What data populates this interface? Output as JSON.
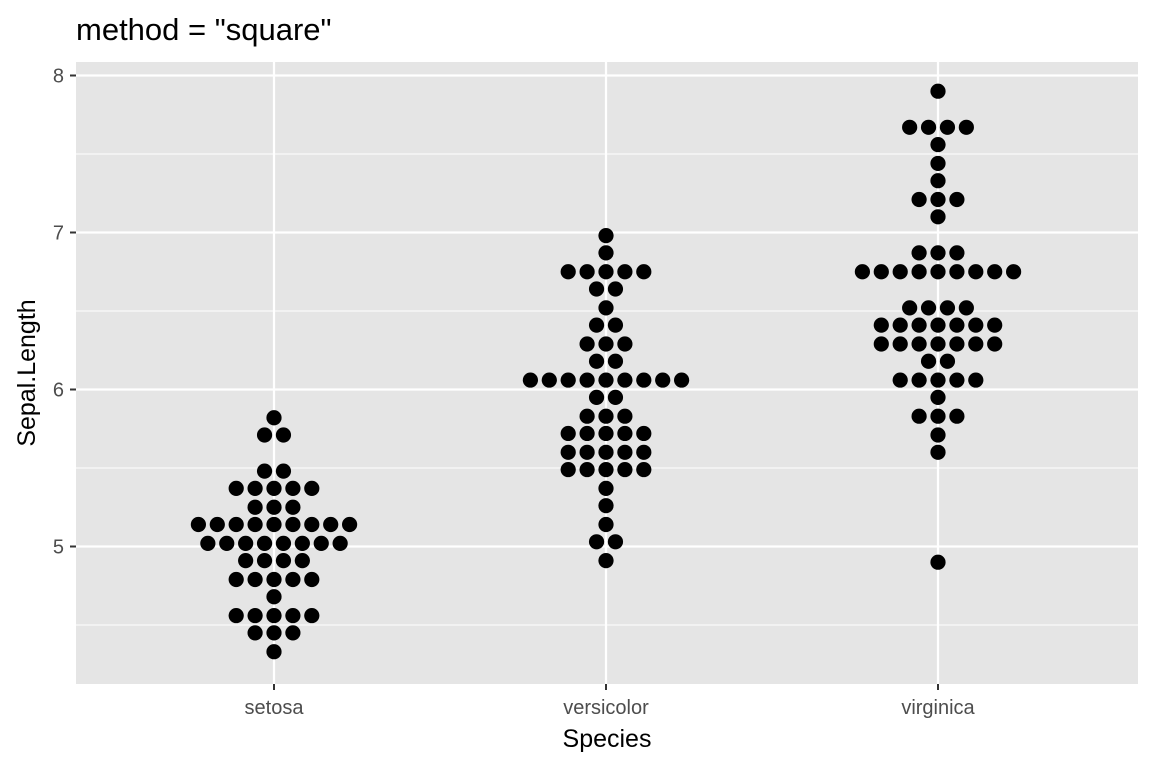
{
  "chart_data": {
    "type": "dotplot",
    "title": "method = \"square\"",
    "xlabel": "Species",
    "ylabel": "Sepal.Length",
    "categories": [
      "setosa",
      "versicolor",
      "virginica"
    ],
    "ylim": [
      4.12,
      8.0
    ],
    "yticks": [
      5,
      6,
      7,
      8
    ],
    "grid": true,
    "dot_color": "#000000",
    "panel_background": "#e5e5e5",
    "grid_color": "#ffffff",
    "bins": [
      {
        "category": "setosa",
        "rows": [
          {
            "y": 5.82,
            "count": 1
          },
          {
            "y": 5.71,
            "count": 2
          },
          {
            "y": 5.48,
            "count": 2
          },
          {
            "y": 5.37,
            "count": 5
          },
          {
            "y": 5.25,
            "count": 3
          },
          {
            "y": 5.14,
            "count": 9
          },
          {
            "y": 5.02,
            "count": 8
          },
          {
            "y": 4.91,
            "count": 4
          },
          {
            "y": 4.79,
            "count": 5
          },
          {
            "y": 4.68,
            "count": 1
          },
          {
            "y": 4.56,
            "count": 5
          },
          {
            "y": 4.45,
            "count": 3
          },
          {
            "y": 4.33,
            "count": 1
          }
        ]
      },
      {
        "category": "versicolor",
        "rows": [
          {
            "y": 6.98,
            "count": 1
          },
          {
            "y": 6.87,
            "count": 1
          },
          {
            "y": 6.75,
            "count": 5
          },
          {
            "y": 6.64,
            "count": 2
          },
          {
            "y": 6.52,
            "count": 1
          },
          {
            "y": 6.41,
            "count": 2
          },
          {
            "y": 6.29,
            "count": 3
          },
          {
            "y": 6.18,
            "count": 2
          },
          {
            "y": 6.06,
            "count": 9
          },
          {
            "y": 5.95,
            "count": 2
          },
          {
            "y": 5.83,
            "count": 3
          },
          {
            "y": 5.72,
            "count": 5
          },
          {
            "y": 5.6,
            "count": 5
          },
          {
            "y": 5.49,
            "count": 5
          },
          {
            "y": 5.37,
            "count": 1
          },
          {
            "y": 5.26,
            "count": 1
          },
          {
            "y": 5.14,
            "count": 1
          },
          {
            "y": 5.03,
            "count": 2
          },
          {
            "y": 4.91,
            "count": 1
          }
        ]
      },
      {
        "category": "virginica",
        "rows": [
          {
            "y": 7.9,
            "count": 1
          },
          {
            "y": 7.67,
            "count": 4
          },
          {
            "y": 7.56,
            "count": 1
          },
          {
            "y": 7.44,
            "count": 1
          },
          {
            "y": 7.33,
            "count": 1
          },
          {
            "y": 7.21,
            "count": 3
          },
          {
            "y": 7.1,
            "count": 1
          },
          {
            "y": 6.87,
            "count": 3
          },
          {
            "y": 6.75,
            "count": 9
          },
          {
            "y": 6.52,
            "count": 4
          },
          {
            "y": 6.41,
            "count": 7
          },
          {
            "y": 6.29,
            "count": 7
          },
          {
            "y": 6.18,
            "count": 2
          },
          {
            "y": 6.06,
            "count": 5
          },
          {
            "y": 5.95,
            "count": 1
          },
          {
            "y": 5.83,
            "count": 3
          },
          {
            "y": 5.71,
            "count": 1
          },
          {
            "y": 5.6,
            "count": 1
          },
          {
            "y": 4.9,
            "count": 1
          }
        ]
      }
    ]
  }
}
